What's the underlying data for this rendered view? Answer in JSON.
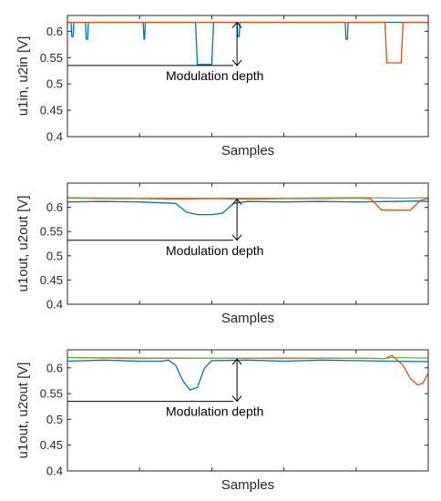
{
  "chart_data": [
    {
      "type": "line",
      "xlabel": "Samples",
      "ylabel": "u1in, u2in [V]",
      "ylim": [
        0.4,
        0.63
      ],
      "yticks": [
        0.4,
        0.45,
        0.5,
        0.55,
        0.6
      ],
      "ytick_labels": [
        "0.4",
        "0.45",
        "0.5",
        "0.55",
        "0.6"
      ],
      "xticks": [
        0.2,
        0.4,
        0.6,
        0.8
      ],
      "xlim": [
        0,
        1
      ],
      "annotation": {
        "text": "Modulation depth",
        "y_top": 0.617,
        "y_bottom": 0.535,
        "x_arrow": 0.47
      },
      "series": [
        {
          "color": "#0072bd",
          "x": [
            0.0,
            0.01,
            0.012,
            0.016,
            0.018,
            0.05,
            0.052,
            0.056,
            0.058,
            0.21,
            0.212,
            0.214,
            0.216,
            0.355,
            0.36,
            0.4,
            0.405,
            0.47,
            0.472,
            0.476,
            0.478,
            0.77,
            0.772,
            0.776,
            0.778,
            1.0
          ],
          "y": [
            0.617,
            0.617,
            0.59,
            0.59,
            0.617,
            0.617,
            0.585,
            0.585,
            0.617,
            0.617,
            0.585,
            0.585,
            0.617,
            0.617,
            0.537,
            0.537,
            0.617,
            0.617,
            0.59,
            0.59,
            0.617,
            0.617,
            0.585,
            0.585,
            0.617,
            0.617
          ]
        },
        {
          "color": "#d95319",
          "x": [
            0.0,
            0.88,
            0.885,
            0.925,
            0.93,
            1.0
          ],
          "y": [
            0.617,
            0.617,
            0.54,
            0.54,
            0.617,
            0.617
          ]
        }
      ]
    },
    {
      "type": "line",
      "xlabel": "Samples",
      "ylabel": "u1out, u2out [V]",
      "ylim": [
        0.4,
        0.65
      ],
      "yticks": [
        0.4,
        0.45,
        0.5,
        0.55,
        0.6
      ],
      "ytick_labels": [
        "0.4",
        "0.45",
        "0.5",
        "0.55",
        "0.6"
      ],
      "xticks": [
        0.2,
        0.4,
        0.6,
        0.8
      ],
      "xlim": [
        0,
        1
      ],
      "annotation": {
        "text": "Modulation depth",
        "y_top": 0.617,
        "y_bottom": 0.532,
        "x_arrow": 0.47
      },
      "series": [
        {
          "color": "#0072bd",
          "x": [
            0.0,
            0.1,
            0.2,
            0.3,
            0.33,
            0.36,
            0.4,
            0.43,
            0.46,
            0.5,
            0.6,
            0.7,
            0.8,
            0.9,
            0.97,
            1.0
          ],
          "y": [
            0.611,
            0.612,
            0.611,
            0.608,
            0.59,
            0.585,
            0.585,
            0.588,
            0.608,
            0.612,
            0.611,
            0.612,
            0.611,
            0.612,
            0.613,
            0.612
          ]
        },
        {
          "color": "#d95319",
          "x": [
            0.0,
            0.1,
            0.2,
            0.3,
            0.4,
            0.5,
            0.6,
            0.7,
            0.8,
            0.84,
            0.87,
            0.9,
            0.95,
            0.98,
            1.0
          ],
          "y": [
            0.619,
            0.618,
            0.618,
            0.617,
            0.618,
            0.617,
            0.618,
            0.618,
            0.619,
            0.618,
            0.595,
            0.594,
            0.594,
            0.615,
            0.618
          ]
        },
        {
          "color": "#77ac30",
          "x": [
            0.0,
            0.2,
            0.4,
            0.6,
            0.8,
            0.84,
            0.9,
            0.95,
            1.0
          ],
          "y": [
            0.62,
            0.619,
            0.619,
            0.619,
            0.62,
            0.62,
            0.619,
            0.619,
            0.62
          ]
        }
      ]
    },
    {
      "type": "line",
      "xlabel": "Samples",
      "ylabel": "u1out, u2out [V]",
      "ylim": [
        0.4,
        0.635
      ],
      "yticks": [
        0.4,
        0.45,
        0.5,
        0.55,
        0.6
      ],
      "ytick_labels": [
        "0.4",
        "0.45",
        "0.5",
        "0.55",
        "0.6"
      ],
      "xticks": [
        0.2,
        0.4,
        0.6,
        0.8
      ],
      "xlim": [
        0,
        1
      ],
      "annotation": {
        "text": "Modulation depth",
        "y_top": 0.617,
        "y_bottom": 0.535,
        "x_arrow": 0.47
      },
      "series": [
        {
          "color": "#0072bd",
          "x": [
            0.0,
            0.1,
            0.2,
            0.26,
            0.28,
            0.3,
            0.32,
            0.34,
            0.36,
            0.38,
            0.4,
            0.5,
            0.6,
            0.7,
            0.8,
            0.9,
            1.0
          ],
          "y": [
            0.613,
            0.615,
            0.613,
            0.613,
            0.615,
            0.605,
            0.575,
            0.557,
            0.562,
            0.6,
            0.614,
            0.615,
            0.613,
            0.615,
            0.614,
            0.613,
            0.612
          ]
        },
        {
          "color": "#d95319",
          "x": [
            0.0,
            0.2,
            0.4,
            0.6,
            0.8,
            0.88,
            0.9,
            0.93,
            0.95,
            0.97,
            0.985,
            1.0
          ],
          "y": [
            0.62,
            0.619,
            0.619,
            0.619,
            0.619,
            0.618,
            0.624,
            0.605,
            0.58,
            0.567,
            0.57,
            0.59
          ]
        },
        {
          "color": "#77ac30",
          "x": [
            0.0,
            0.2,
            0.4,
            0.6,
            0.8,
            0.88,
            0.9,
            1.0
          ],
          "y": [
            0.62,
            0.618,
            0.619,
            0.618,
            0.619,
            0.618,
            0.62,
            0.619
          ]
        }
      ]
    }
  ]
}
